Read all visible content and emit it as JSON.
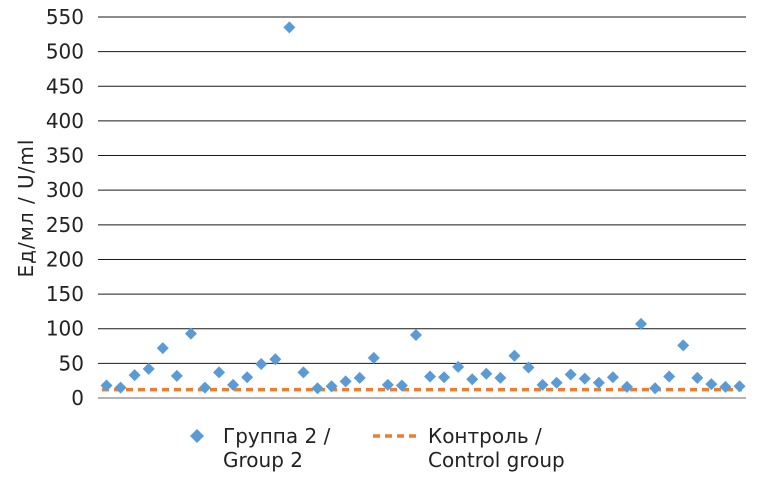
{
  "chart_data": {
    "type": "scatter",
    "ylabel": "Ед/мл  /  U/ml",
    "ylim": [
      0,
      550
    ],
    "yticks": [
      0,
      50,
      100,
      150,
      200,
      250,
      300,
      350,
      400,
      450,
      500,
      550
    ],
    "grid": true,
    "legend_position": "bottom",
    "series": [
      {
        "name": "Группа 2 / Group 2",
        "marker": "diamond",
        "color": "#5B9BD5",
        "x": [
          1,
          2,
          3,
          4,
          5,
          6,
          7,
          8,
          9,
          10,
          11,
          12,
          13,
          14,
          15,
          16,
          17,
          18,
          19,
          20,
          21,
          22,
          23,
          24,
          25,
          26,
          27,
          28,
          29,
          30,
          31,
          32,
          33,
          34,
          35,
          36,
          37,
          38,
          39,
          40,
          41,
          42,
          43,
          44,
          45,
          46
        ],
        "values": [
          18,
          15,
          33,
          42,
          72,
          32,
          93,
          15,
          37,
          19,
          30,
          49,
          56,
          535,
          37,
          14,
          17,
          24,
          29,
          58,
          19,
          18,
          91,
          31,
          30,
          45,
          27,
          35,
          29,
          61,
          44,
          19,
          22,
          34,
          28,
          22,
          30,
          16,
          107,
          14,
          31,
          76,
          29,
          20,
          16,
          17
        ]
      },
      {
        "name": "Контроль / Control group",
        "style": "dashed-line",
        "color": "#ED7D31",
        "value": 12
      }
    ]
  },
  "legend": {
    "group2_line1": "Группа 2 /",
    "group2_line2": "Group 2",
    "control_line1": "Контроль /",
    "control_line2": "Control group"
  }
}
